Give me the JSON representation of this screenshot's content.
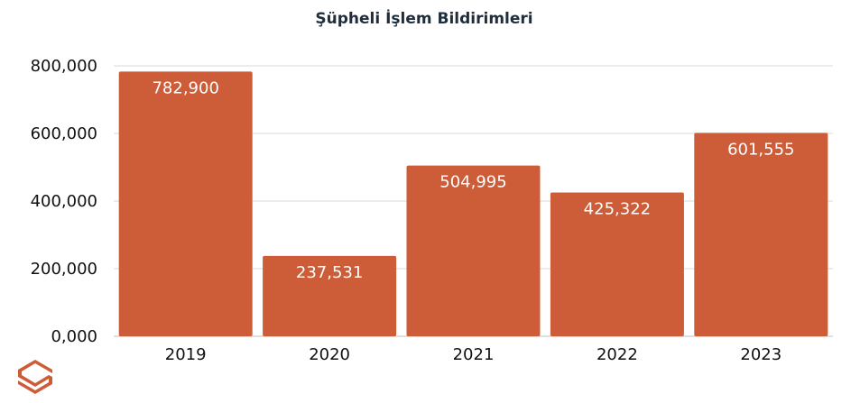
{
  "chart_data": {
    "type": "bar",
    "title": "Şüpheli İşlem Bildirimleri",
    "categories": [
      "2019",
      "2020",
      "2021",
      "2022",
      "2023"
    ],
    "values": [
      782900,
      237531,
      504995,
      425322,
      601555
    ],
    "data_labels": [
      "782,900",
      "237,531",
      "504,995",
      "425,322",
      "601,555"
    ],
    "yticks": [
      0,
      200000,
      400000,
      600000,
      800000
    ],
    "ytick_labels": [
      "0,000",
      "200,000",
      "400,000",
      "600,000",
      "800,000"
    ],
    "ylim": [
      0,
      800000
    ],
    "grid": true,
    "bar_color": "#cd5c38",
    "xlabel": "",
    "ylabel": ""
  },
  "logo": {
    "name": "s-logo-icon",
    "color": "#cd5c38"
  }
}
